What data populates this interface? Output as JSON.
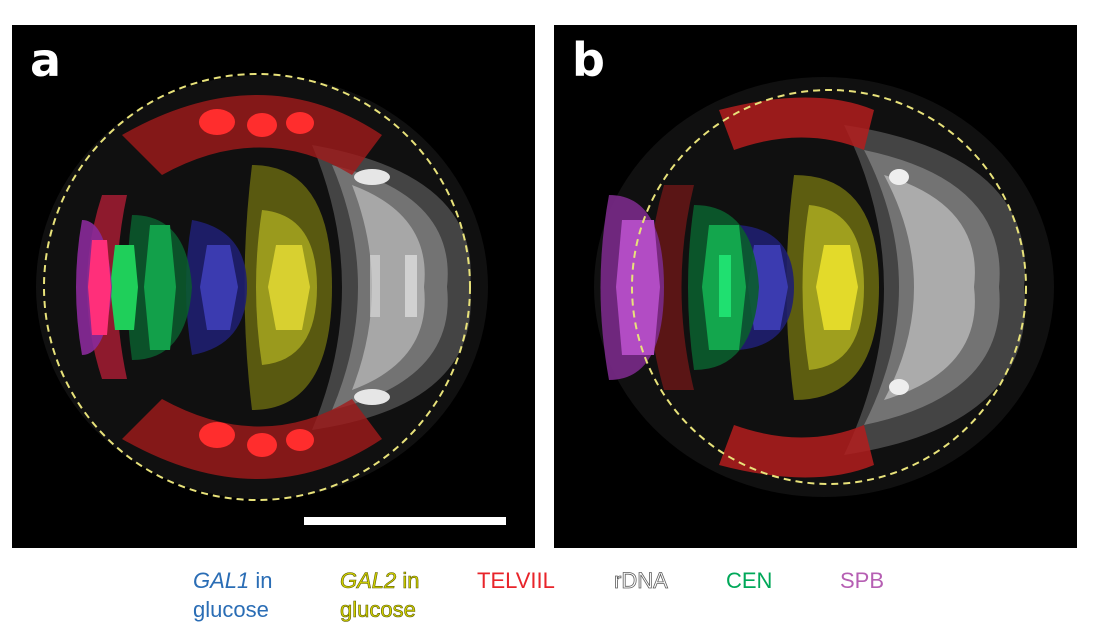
{
  "panels": [
    {
      "letter": "a"
    },
    {
      "letter": "b"
    }
  ],
  "legend": {
    "gal1": {
      "gene": "GAL1",
      "suffix": " in",
      "line2": "glucose",
      "color": "#2a6db5"
    },
    "gal2": {
      "gene": "GAL2",
      "suffix": " in",
      "line2": "glucose",
      "color": "#d4d400"
    },
    "telviil": {
      "label": "TELVIIL",
      "color": "#e8242a"
    },
    "rdna": {
      "label": "rDNA",
      "color": "#7a7a7a"
    },
    "cen": {
      "label": "CEN",
      "color": "#00a859"
    },
    "spb": {
      "label": "SPB",
      "color": "#b65fb3"
    }
  },
  "colors": {
    "boundary": "#e8e27a",
    "scale_bar": "#ffffff"
  }
}
